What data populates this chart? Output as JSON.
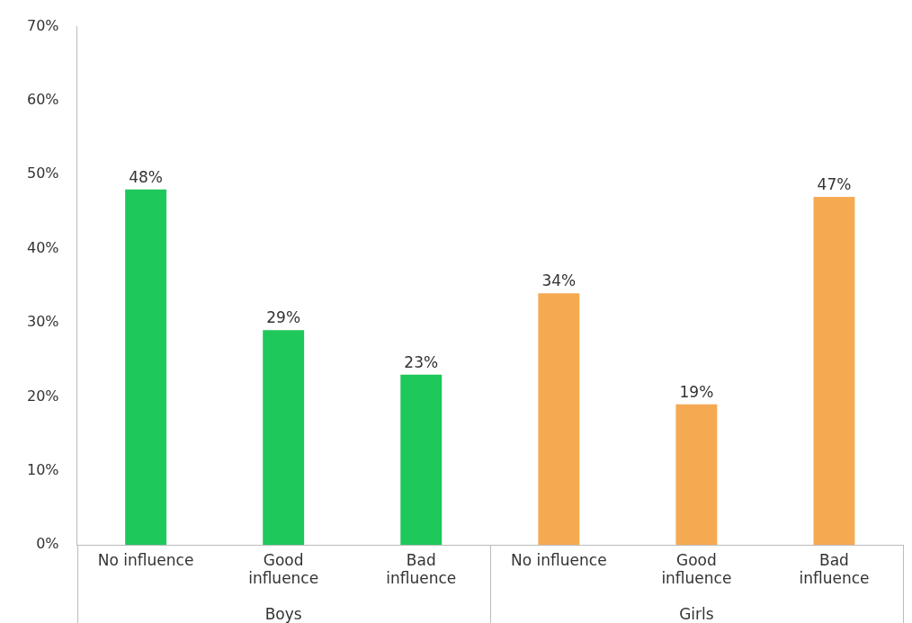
{
  "chart_data": {
    "type": "bar",
    "categories": [
      "No influence",
      "Good influence",
      "Bad influence",
      "No influence",
      "Good influence",
      "Bad influence"
    ],
    "series": [
      {
        "color": "#1ec85a",
        "values": [
          48,
          29,
          23,
          null,
          null,
          null
        ],
        "value_labels": [
          "48%",
          "29%",
          "23%",
          null,
          null,
          null
        ]
      },
      {
        "color": "#f5aa52",
        "values": [
          null,
          null,
          null,
          34,
          19,
          47
        ],
        "value_labels": [
          null,
          null,
          null,
          "34%",
          "19%",
          "47%"
        ]
      }
    ],
    "ylim": [
      0,
      70
    ],
    "yticks": [
      {
        "value": 0,
        "label": "0%"
      },
      {
        "value": 10,
        "label": "10%"
      },
      {
        "value": 20,
        "label": "20%"
      },
      {
        "value": 30,
        "label": "30%"
      },
      {
        "value": 40,
        "label": "40%"
      },
      {
        "value": 50,
        "label": "50%"
      },
      {
        "value": 60,
        "label": "60%"
      },
      {
        "value": 70,
        "label": "70%"
      }
    ],
    "annotations": [
      "Boys",
      "Girls"
    ],
    "grid": false,
    "legend": false
  }
}
